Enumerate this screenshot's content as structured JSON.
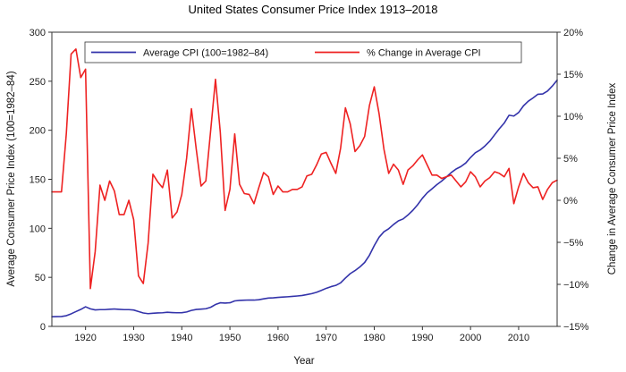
{
  "chart_data": {
    "type": "line",
    "title": "United States Consumer Price Index 1913–2018",
    "xlabel": "Year",
    "ylabel_left": "Average Consumer Price Index (100=1982–84)",
    "ylabel_right": "Change in Average Consumer Price Index",
    "xlim": [
      1913,
      2018
    ],
    "ylim_left": [
      0,
      300
    ],
    "ylim_right": [
      -15,
      20
    ],
    "x_ticks": [
      1920,
      1930,
      1940,
      1950,
      1960,
      1970,
      1980,
      1990,
      2000,
      2010
    ],
    "y_ticks_left": [
      0,
      50,
      100,
      150,
      200,
      250,
      300
    ],
    "y_ticks_right": [
      -15,
      -10,
      -5,
      0,
      5,
      10,
      15,
      20
    ],
    "y_tick_labels_right": [
      "−15%",
      "−10%",
      "−5%",
      "0%",
      "5%",
      "10%",
      "15%",
      "20%"
    ],
    "legend_position": "top",
    "series": [
      {
        "name": "Average CPI (100=1982–84)",
        "axis": "left",
        "color": "#3333aa",
        "x": [
          1913,
          1914,
          1915,
          1916,
          1917,
          1918,
          1919,
          1920,
          1921,
          1922,
          1923,
          1924,
          1925,
          1926,
          1927,
          1928,
          1929,
          1930,
          1931,
          1932,
          1933,
          1934,
          1935,
          1936,
          1937,
          1938,
          1939,
          1940,
          1941,
          1942,
          1943,
          1944,
          1945,
          1946,
          1947,
          1948,
          1949,
          1950,
          1951,
          1952,
          1953,
          1954,
          1955,
          1956,
          1957,
          1958,
          1959,
          1960,
          1961,
          1962,
          1963,
          1964,
          1965,
          1966,
          1967,
          1968,
          1969,
          1970,
          1971,
          1972,
          1973,
          1974,
          1975,
          1976,
          1977,
          1978,
          1979,
          1980,
          1981,
          1982,
          1983,
          1984,
          1985,
          1986,
          1987,
          1988,
          1989,
          1990,
          1991,
          1992,
          1993,
          1994,
          1995,
          1996,
          1997,
          1998,
          1999,
          2000,
          2001,
          2002,
          2003,
          2004,
          2005,
          2006,
          2007,
          2008,
          2009,
          2010,
          2011,
          2012,
          2013,
          2014,
          2015,
          2016,
          2017,
          2018
        ],
        "values": [
          9.9,
          10.0,
          10.1,
          10.9,
          12.8,
          15.1,
          17.3,
          20.0,
          17.9,
          16.8,
          17.1,
          17.1,
          17.5,
          17.7,
          17.4,
          17.1,
          17.1,
          16.7,
          15.2,
          13.7,
          13.0,
          13.4,
          13.7,
          13.9,
          14.4,
          14.1,
          13.9,
          14.0,
          14.7,
          16.3,
          17.3,
          17.6,
          18.0,
          19.5,
          22.3,
          24.1,
          23.8,
          24.1,
          26.0,
          26.5,
          26.7,
          26.9,
          26.8,
          27.2,
          28.1,
          28.9,
          29.1,
          29.6,
          29.9,
          30.2,
          30.6,
          31.0,
          31.5,
          32.4,
          33.4,
          34.8,
          36.7,
          38.8,
          40.5,
          41.8,
          44.4,
          49.3,
          53.8,
          56.9,
          60.6,
          65.2,
          72.6,
          82.4,
          90.9,
          96.5,
          99.6,
          103.9,
          107.6,
          109.6,
          113.6,
          118.3,
          124.0,
          130.7,
          136.2,
          140.3,
          144.5,
          148.2,
          152.4,
          156.9,
          160.5,
          163.0,
          166.6,
          172.2,
          177.1,
          179.9,
          184.0,
          188.9,
          195.3,
          201.6,
          207.3,
          215.3,
          214.5,
          218.1,
          224.9,
          229.6,
          233.0,
          236.7,
          237.0,
          240.0,
          245.1,
          251.1
        ]
      },
      {
        "name": "% Change in Average CPI",
        "axis": "right",
        "color": "#ee2222",
        "x": [
          1913,
          1914,
          1915,
          1916,
          1917,
          1918,
          1919,
          1920,
          1921,
          1922,
          1923,
          1924,
          1925,
          1926,
          1927,
          1928,
          1929,
          1930,
          1931,
          1932,
          1933,
          1934,
          1935,
          1936,
          1937,
          1938,
          1939,
          1940,
          1941,
          1942,
          1943,
          1944,
          1945,
          1946,
          1947,
          1948,
          1949,
          1950,
          1951,
          1952,
          1953,
          1954,
          1955,
          1956,
          1957,
          1958,
          1959,
          1960,
          1961,
          1962,
          1963,
          1964,
          1965,
          1966,
          1967,
          1968,
          1969,
          1970,
          1971,
          1972,
          1973,
          1974,
          1975,
          1976,
          1977,
          1978,
          1979,
          1980,
          1981,
          1982,
          1983,
          1984,
          1985,
          1986,
          1987,
          1988,
          1989,
          1990,
          1991,
          1992,
          1993,
          1994,
          1995,
          1996,
          1997,
          1998,
          1999,
          2000,
          2001,
          2002,
          2003,
          2004,
          2005,
          2006,
          2007,
          2008,
          2009,
          2010,
          2011,
          2012,
          2013,
          2014,
          2015,
          2016,
          2017,
          2018
        ],
        "values": [
          1.0,
          1.0,
          1.0,
          7.9,
          17.4,
          18.0,
          14.6,
          15.6,
          -10.5,
          -6.1,
          1.8,
          0.0,
          2.3,
          1.1,
          -1.7,
          -1.7,
          0.0,
          -2.3,
          -9.0,
          -9.9,
          -5.1,
          3.1,
          2.2,
          1.5,
          3.6,
          -2.1,
          -1.4,
          0.7,
          5.0,
          10.9,
          6.1,
          1.7,
          2.3,
          8.3,
          14.4,
          8.1,
          -1.2,
          1.3,
          7.9,
          1.9,
          0.8,
          0.7,
          -0.4,
          1.5,
          3.3,
          2.8,
          0.7,
          1.7,
          1.0,
          1.0,
          1.3,
          1.3,
          1.6,
          2.9,
          3.1,
          4.2,
          5.5,
          5.7,
          4.4,
          3.2,
          6.2,
          11.0,
          9.1,
          5.8,
          6.5,
          7.6,
          11.3,
          13.5,
          10.3,
          6.1,
          3.2,
          4.3,
          3.6,
          1.9,
          3.6,
          4.1,
          4.8,
          5.4,
          4.2,
          3.0,
          3.0,
          2.6,
          2.8,
          3.0,
          2.3,
          1.6,
          2.2,
          3.4,
          2.8,
          1.6,
          2.3,
          2.7,
          3.4,
          3.2,
          2.8,
          3.8,
          -0.4,
          1.6,
          3.2,
          2.1,
          1.5,
          1.6,
          0.1,
          1.3,
          2.1,
          2.4
        ]
      }
    ]
  }
}
